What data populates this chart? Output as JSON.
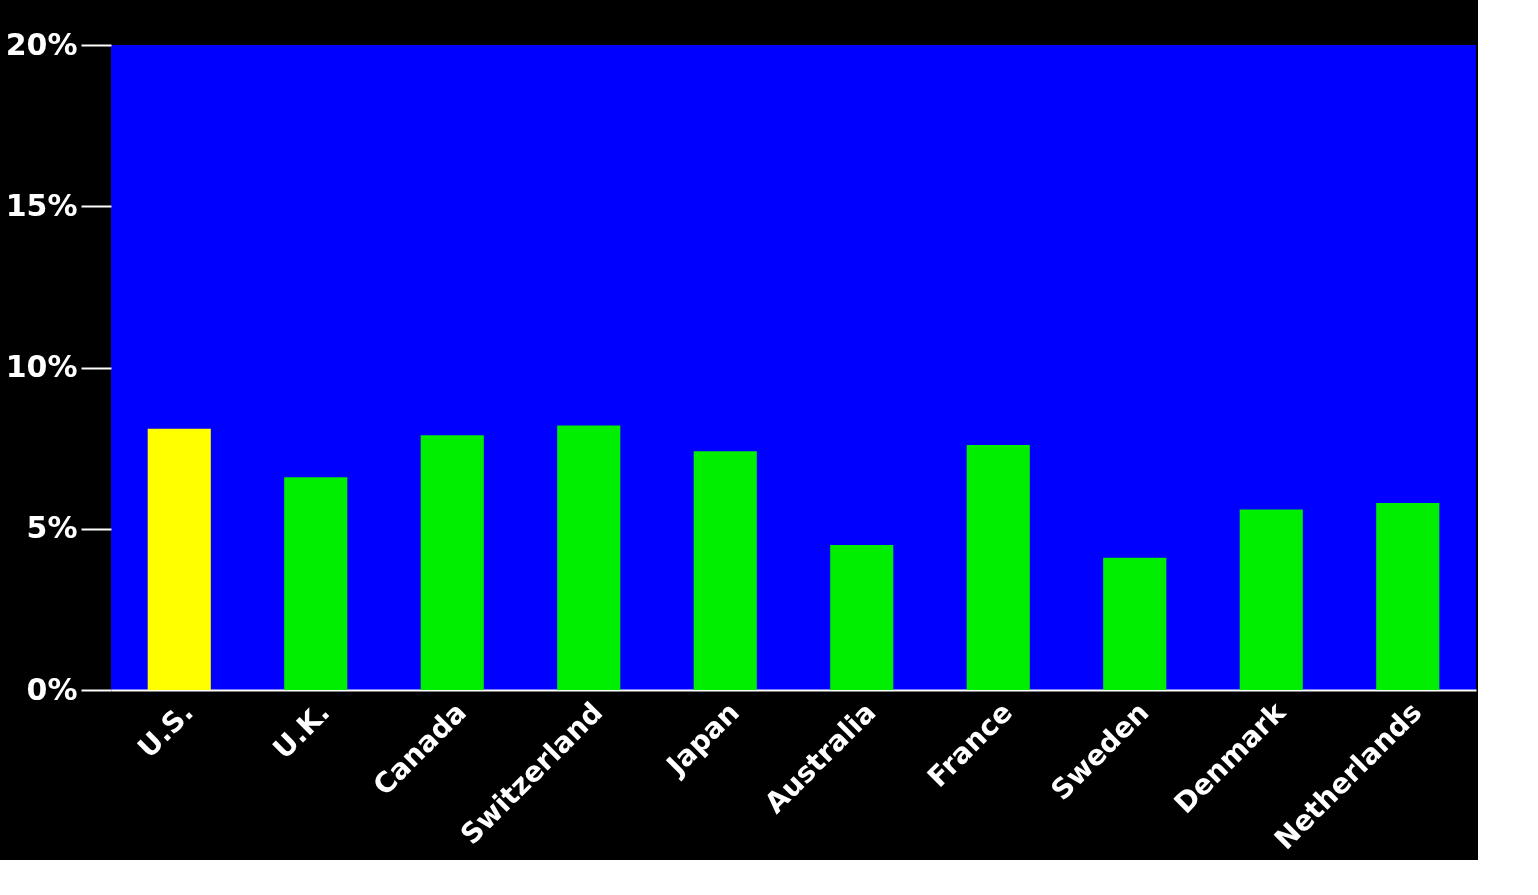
{
  "chart_data": {
    "type": "bar",
    "categories": [
      "U.S.",
      "U.K.",
      "Canada",
      "Switzerland",
      "Japan",
      "Australia",
      "France",
      "Sweden",
      "Denmark",
      "Netherlands"
    ],
    "values": [
      8.1,
      6.6,
      7.9,
      8.2,
      7.4,
      4.5,
      7.6,
      4.1,
      5.6,
      5.8
    ],
    "colors": [
      "#ffff00",
      "#00ee00",
      "#00ee00",
      "#00ee00",
      "#00ee00",
      "#00ee00",
      "#00ee00",
      "#00ee00",
      "#00ee00",
      "#00ee00"
    ],
    "ylim": [
      0,
      20
    ],
    "yticks": [
      {
        "value": 0,
        "label": "0%"
      },
      {
        "value": 5,
        "label": "5%"
      },
      {
        "value": 10,
        "label": "10%"
      },
      {
        "value": 15,
        "label": "15%"
      },
      {
        "value": 20,
        "label": "20%"
      }
    ],
    "grid": false
  }
}
